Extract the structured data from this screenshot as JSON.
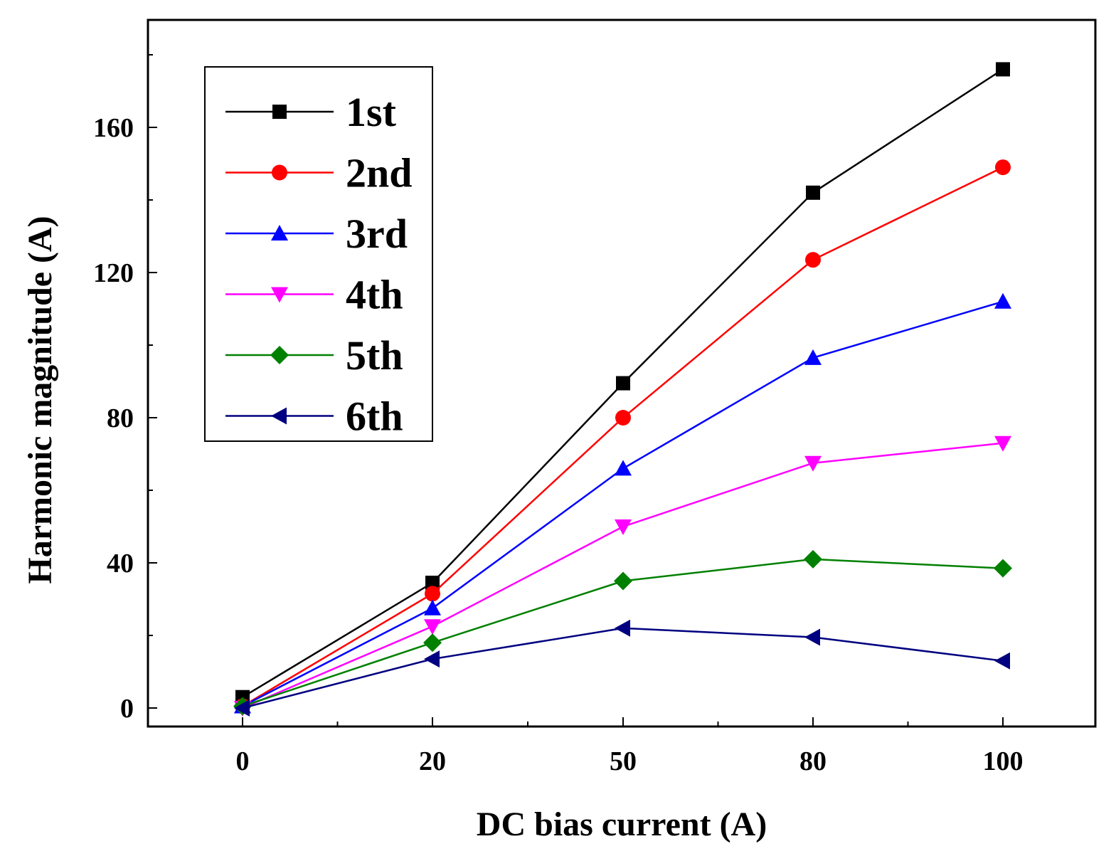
{
  "chart_data": {
    "type": "line",
    "title": "",
    "xlabel": "DC bias current (A)",
    "ylabel": "Harmonic magnitude (A)",
    "categories": [
      "0",
      "20",
      "50",
      "80",
      "100"
    ],
    "yticks": [
      "0",
      "40",
      "80",
      "120",
      "160"
    ],
    "ylim": [
      -5,
      190
    ],
    "grid": false,
    "legend_position": "top-left",
    "series": [
      {
        "name": "1st",
        "color": "#000000",
        "marker": "square",
        "values": [
          3,
          34.5,
          89.5,
          142,
          176
        ]
      },
      {
        "name": "2nd",
        "color": "#ff0000",
        "marker": "circle",
        "values": [
          0.5,
          31.5,
          80,
          123.5,
          149
        ]
      },
      {
        "name": "3rd",
        "color": "#0000ff",
        "marker": "triangle-up",
        "values": [
          0.5,
          27.5,
          66,
          96.5,
          112
        ]
      },
      {
        "name": "4th",
        "color": "#ff00ff",
        "marker": "triangle-down",
        "values": [
          0,
          22.5,
          50,
          67.5,
          73
        ]
      },
      {
        "name": "5th",
        "color": "#008000",
        "marker": "diamond",
        "values": [
          0.5,
          18,
          35,
          41,
          38.5
        ]
      },
      {
        "name": "6th",
        "color": "#000080",
        "marker": "triangle-left",
        "values": [
          0,
          13.5,
          22,
          19.5,
          13
        ]
      }
    ]
  }
}
